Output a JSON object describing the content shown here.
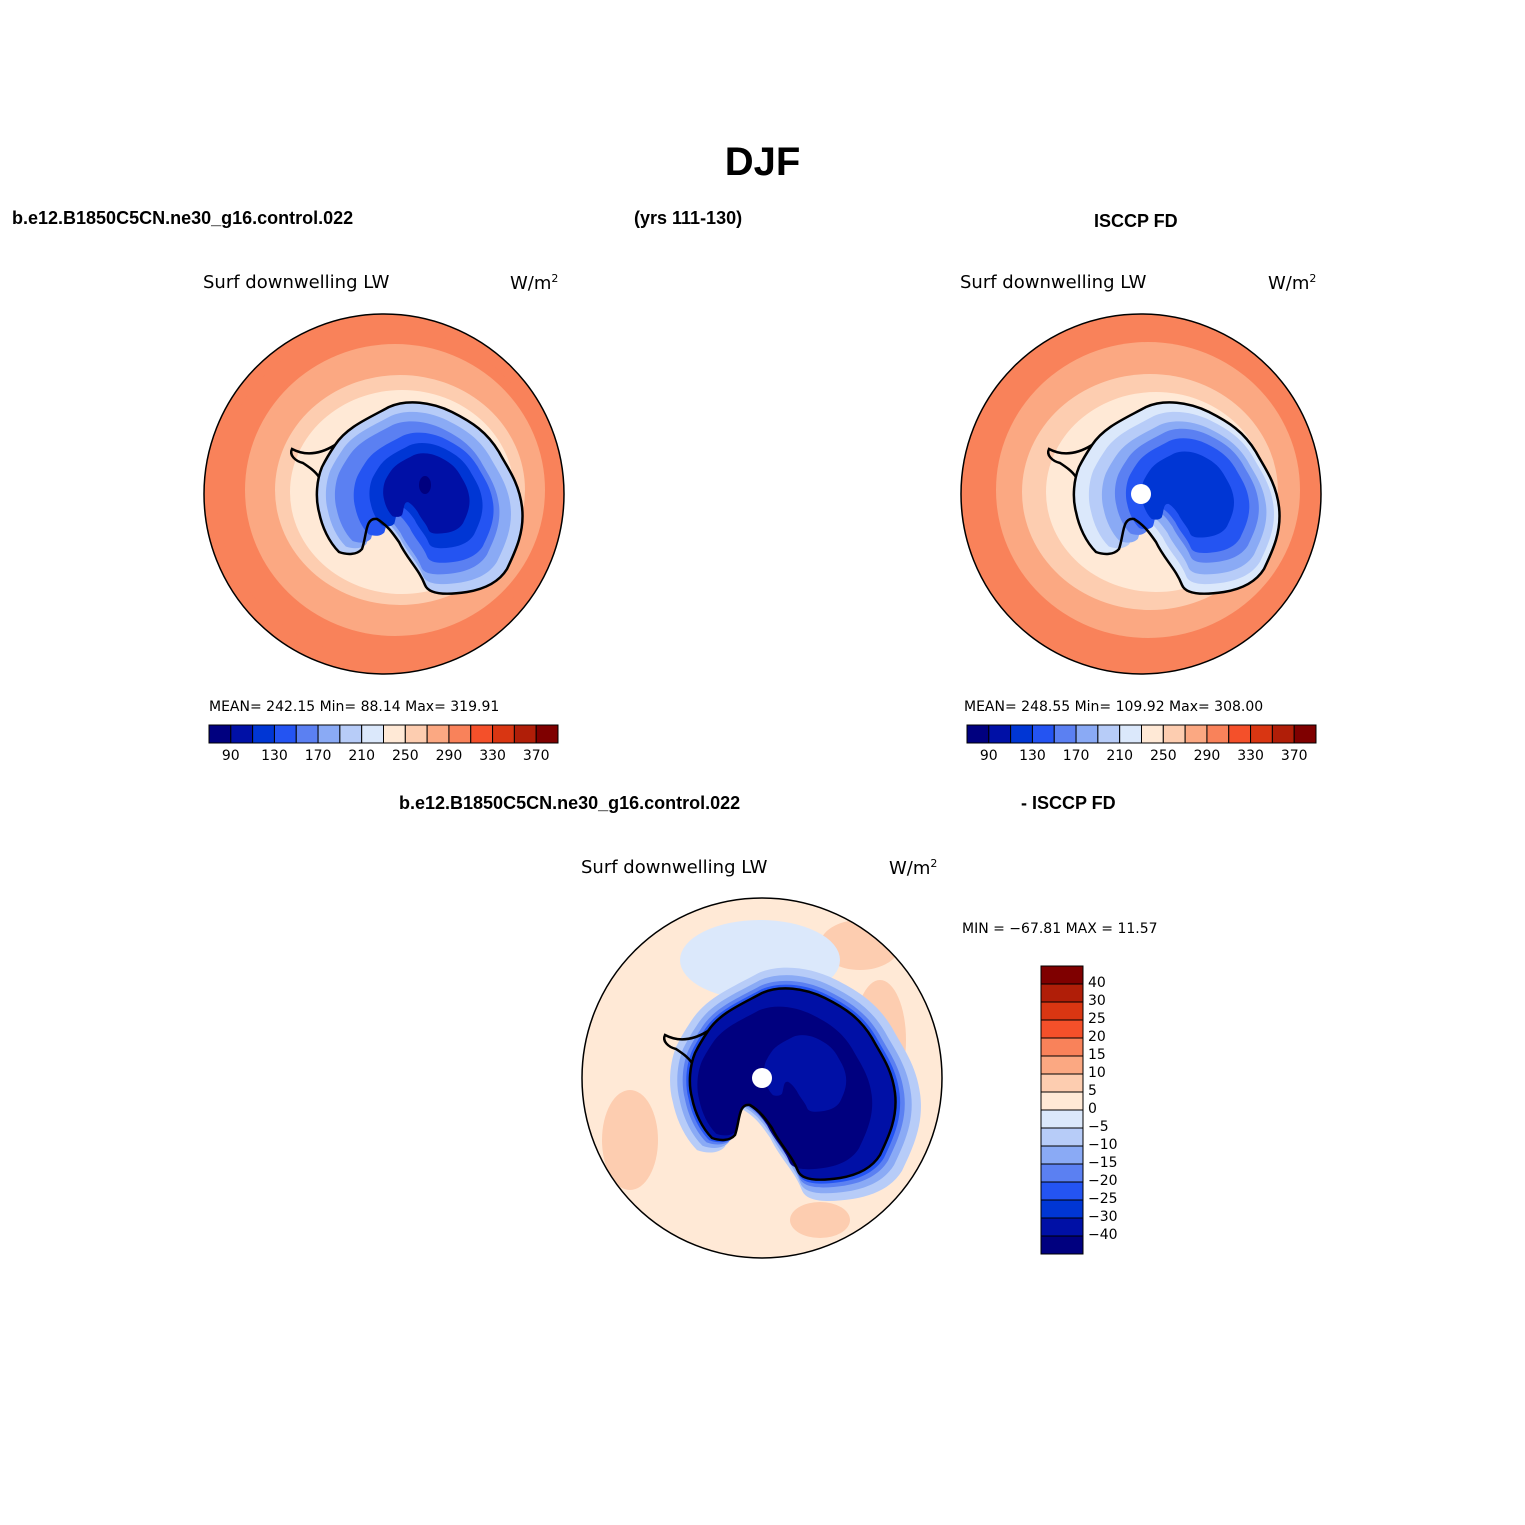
{
  "title": "DJF",
  "header": {
    "case": "b.e12.B1850C5CN.ne30_g16.control.022",
    "years": "(yrs 111-130)",
    "obs": "ISCCP FD",
    "diff_case": "b.e12.B1850C5CN.ne30_g16.control.022",
    "diff_obs": "- ISCCP FD"
  },
  "panels": {
    "model": {
      "variable": "Surf downwelling LW",
      "units": "W/m",
      "stats": "MEAN= 242.15   Min=  88.14   Max= 319.91"
    },
    "obs": {
      "variable": "Surf downwelling LW",
      "units": "W/m",
      "stats": "MEAN= 248.55   Min= 109.92   Max= 308.00"
    },
    "diff": {
      "variable": "Surf downwelling LW",
      "units": "W/m",
      "stats": "MIN = −67.81  MAX =   11.57"
    }
  },
  "units_superscript": "2",
  "colorbar_main": {
    "colors": [
      "#00007f",
      "#0010a6",
      "#0036d4",
      "#2454f2",
      "#5b80f2",
      "#8aaaf5",
      "#b7ccf8",
      "#dbe8fb",
      "#ffe9d6",
      "#fdcdb0",
      "#fba882",
      "#f9825a",
      "#f4502a",
      "#d93612",
      "#b01e08",
      "#7f0000"
    ],
    "labels": [
      "90",
      "130",
      "170",
      "210",
      "250",
      "290",
      "330",
      "370"
    ]
  },
  "colorbar_diff": {
    "colors_top_to_bottom": [
      "#7f0000",
      "#b01e08",
      "#d93612",
      "#f4502a",
      "#f9825a",
      "#fba882",
      "#fdcdb0",
      "#ffe9d6",
      "#dbe8fb",
      "#b7ccf8",
      "#8aaaf5",
      "#5b80f2",
      "#2454f2",
      "#0036d4",
      "#0010a6",
      "#00007f"
    ],
    "labels": [
      "40",
      "30",
      "25",
      "20",
      "15",
      "10",
      "5",
      "0",
      "−5",
      "−10",
      "−15",
      "−20",
      "−25",
      "−30",
      "−40"
    ]
  }
}
